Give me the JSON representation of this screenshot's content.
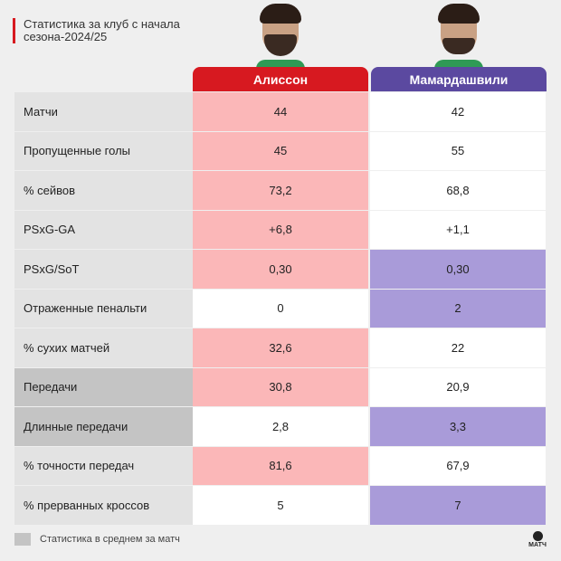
{
  "title": "Статистика за клуб с начала сезона-2024/25",
  "players": [
    {
      "name": "Алиссон",
      "color": "#d71920"
    },
    {
      "name": "Мамардашвили",
      "color": "#5b49a0"
    }
  ],
  "highlight_colors": {
    "p1": "#fbb7b8",
    "p2": "#a99bd9"
  },
  "rows": [
    {
      "label": "Матчи",
      "v1": "44",
      "v2": "42",
      "h1": true,
      "h2": false,
      "avg": false
    },
    {
      "label": "Пропущенные голы",
      "v1": "45",
      "v2": "55",
      "h1": true,
      "h2": false,
      "avg": false
    },
    {
      "label": "% сейвов",
      "v1": "73,2",
      "v2": "68,8",
      "h1": true,
      "h2": false,
      "avg": false
    },
    {
      "label": "PSxG-GA",
      "v1": "+6,8",
      "v2": "+1,1",
      "h1": true,
      "h2": false,
      "avg": false
    },
    {
      "label": "PSxG/SoT",
      "v1": "0,30",
      "v2": "0,30",
      "h1": true,
      "h2": true,
      "avg": false
    },
    {
      "label": "Отраженные пенальти",
      "v1": "0",
      "v2": "2",
      "h1": false,
      "h2": true,
      "avg": false
    },
    {
      "label": "% сухих матчей",
      "v1": "32,6",
      "v2": "22",
      "h1": true,
      "h2": false,
      "avg": false
    },
    {
      "label": "Передачи",
      "v1": "30,8",
      "v2": "20,9",
      "h1": true,
      "h2": false,
      "avg": true
    },
    {
      "label": "Длинные передачи",
      "v1": "2,8",
      "v2": "3,3",
      "h1": false,
      "h2": true,
      "avg": true
    },
    {
      "label": "% точности передач",
      "v1": "81,6",
      "v2": "67,9",
      "h1": true,
      "h2": false,
      "avg": false
    },
    {
      "label": "% прерванных кроссов",
      "v1": "5",
      "v2": "7",
      "h1": false,
      "h2": true,
      "avg": false
    }
  ],
  "legend": "Статистика в среднем за матч",
  "logo": "МАТЧ"
}
